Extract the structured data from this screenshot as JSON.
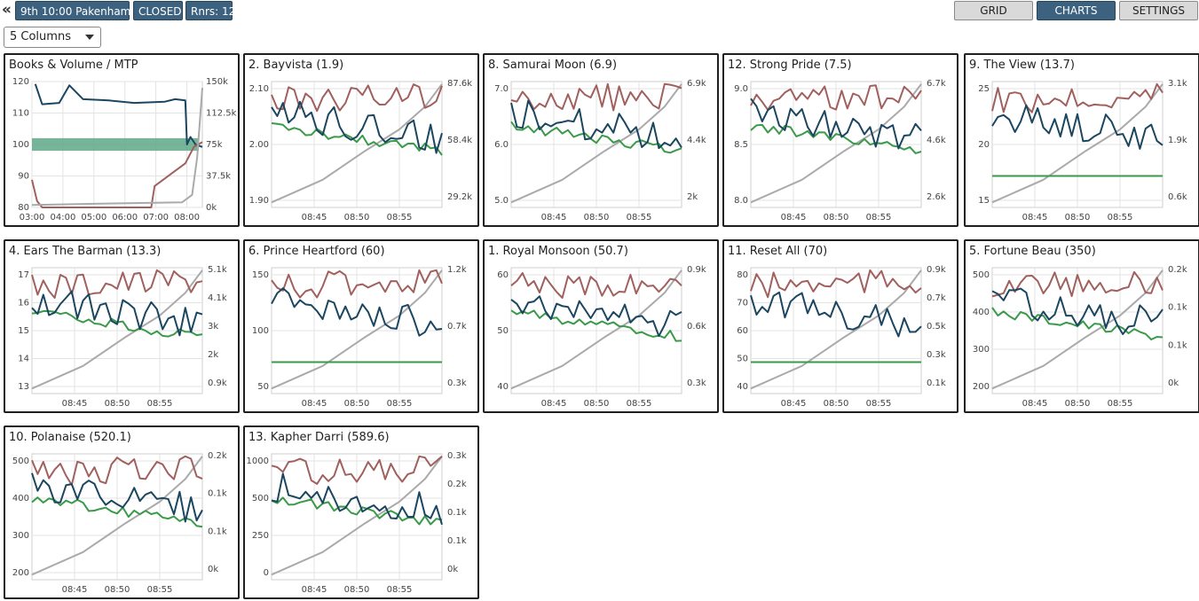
{
  "header": {
    "back_glyph": "«",
    "race_label": "9th 10:00 Pakenham",
    "status_label": "CLOSED",
    "runners_label": "Rnrs: 12",
    "columns_selected": "5 Columns",
    "buttons": {
      "grid": "GRID",
      "charts": "CHARTS",
      "settings": "SETTINGS"
    }
  },
  "colors": {
    "navy": "#1b4660",
    "red": "#a0605e",
    "green": "#3a9a4a",
    "gray": "#aaaaaa",
    "band": "#5fa88a",
    "button_active": "#3d6280"
  },
  "books_panel": {
    "title": "Books & Volume / MTP",
    "y_left": {
      "ticks": [
        "120",
        "110",
        "100",
        "90",
        "80"
      ],
      "min": 80,
      "max": 120
    },
    "y_right": {
      "ticks": [
        "150k",
        "112.5k",
        "75k",
        "37.5k",
        "0k"
      ]
    },
    "x_ticks": [
      "03:00",
      "04:00",
      "05:00",
      "06:00",
      "07:00",
      "08:00"
    ],
    "band": [
      98,
      102
    ]
  },
  "runners": [
    {
      "title": "2. Bayvista (1.9)",
      "x_ticks": [
        "08:45",
        "08:50",
        "08:55"
      ],
      "left_ticks": [
        "2.10",
        "2.00",
        "1.90"
      ],
      "right_ticks": [
        "87.6k",
        "58.4k",
        "29.2k"
      ],
      "flat_green": false
    },
    {
      "title": "8. Samurai Moon (6.9)",
      "x_ticks": [
        "08:45",
        "08:50",
        "08:55"
      ],
      "left_ticks": [
        "7.0",
        "6.0",
        "5.0"
      ],
      "right_ticks": [
        "6.9k",
        "4.4k",
        "2k"
      ],
      "flat_green": false
    },
    {
      "title": "12. Strong Pride (7.5)",
      "x_ticks": [
        "08:45",
        "08:50",
        "08:55"
      ],
      "left_ticks": [
        "9.0",
        "8.5",
        "8.0"
      ],
      "right_ticks": [
        "6.7k",
        "4.6k",
        "2.6k"
      ],
      "flat_green": false
    },
    {
      "title": "9. The View (13.7)",
      "x_ticks": [
        "08:45",
        "08:50",
        "08:55"
      ],
      "left_ticks": [
        "25",
        "20",
        "15"
      ],
      "right_ticks": [
        "3.1k",
        "1.9k",
        "0.6k"
      ],
      "flat_green": true
    },
    {
      "title": "4. Ears The Barman (13.3)",
      "x_ticks": [
        "08:45",
        "08:50",
        "08:55"
      ],
      "left_ticks": [
        "17",
        "16",
        "15",
        "14",
        "13"
      ],
      "right_ticks": [
        "5.1k",
        "4.1k",
        "3k",
        "2k",
        "0.9k"
      ],
      "flat_green": false
    },
    {
      "title": "6. Prince Heartford (60)",
      "x_ticks": [
        "08:45",
        "08:50",
        "08:55"
      ],
      "left_ticks": [
        "150",
        "100",
        "50"
      ],
      "right_ticks": [
        "1.2k",
        "0.7k",
        "0.3k"
      ],
      "flat_green": true
    },
    {
      "title": "1. Royal Monsoon (50.7)",
      "x_ticks": [
        "08:45",
        "08:50",
        "08:55"
      ],
      "left_ticks": [
        "60",
        "50",
        "40"
      ],
      "right_ticks": [
        "0.9k",
        "0.6k",
        "0.3k"
      ],
      "flat_green": false
    },
    {
      "title": "11. Reset All (70)",
      "x_ticks": [
        "08:45",
        "08:50",
        "08:55"
      ],
      "left_ticks": [
        "80",
        "70",
        "60",
        "50",
        "40"
      ],
      "right_ticks": [
        "0.9k",
        "0.7k",
        "0.5k",
        "0.3k",
        "0.1k"
      ],
      "flat_green": true
    },
    {
      "title": "5. Fortune Beau (350)",
      "x_ticks": [
        "08:45",
        "08:50",
        "08:55"
      ],
      "left_ticks": [
        "500",
        "400",
        "300",
        "200"
      ],
      "right_ticks": [
        "0.2k",
        "0.1k",
        "0.1k",
        "0k"
      ],
      "flat_green": false
    },
    {
      "title": "10. Polanaise (520.1)",
      "x_ticks": [
        "08:45",
        "08:50",
        "08:55"
      ],
      "left_ticks": [
        "500",
        "400",
        "300",
        "200"
      ],
      "right_ticks": [
        "0.2k",
        "0.1k",
        "0.1k",
        "0k"
      ],
      "flat_green": false
    },
    {
      "title": "13. Kapher Darri (589.6)",
      "x_ticks": [
        "08:45",
        "08:50",
        "08:55"
      ],
      "left_ticks": [
        "1000",
        "500",
        "250",
        "0"
      ],
      "right_ticks": [
        "0.3k",
        "0.2k",
        "0.1k",
        "0.1k",
        "0k"
      ],
      "flat_green": false
    }
  ]
}
